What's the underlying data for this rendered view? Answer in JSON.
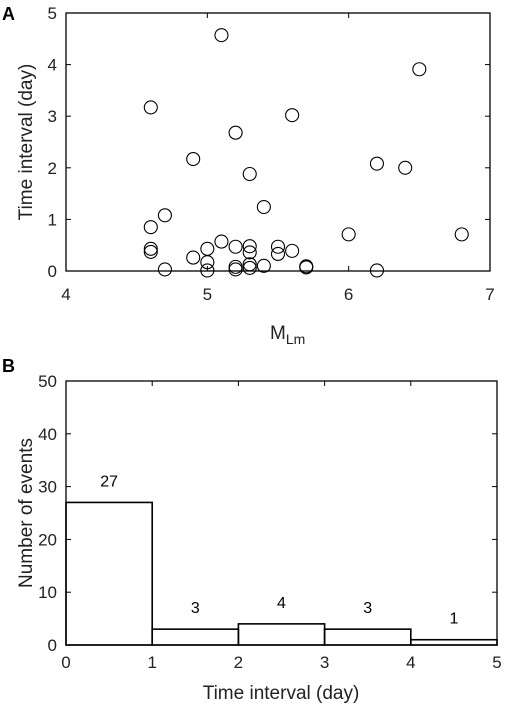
{
  "chart_data": [
    {
      "panel": "A",
      "type": "scatter",
      "xlabel_main": "M",
      "xlabel_sub": "Lm",
      "ylabel": "Time interval (day)",
      "xlim": [
        4,
        7
      ],
      "ylim": [
        0,
        5
      ],
      "xticks": [
        "4",
        "5",
        "6",
        "7"
      ],
      "yticks": [
        "0",
        "1",
        "2",
        "3",
        "4",
        "5"
      ],
      "points": [
        {
          "x": 4.6,
          "y": 3.17
        },
        {
          "x": 4.6,
          "y": 0.85
        },
        {
          "x": 4.6,
          "y": 0.43
        },
        {
          "x": 4.6,
          "y": 0.37
        },
        {
          "x": 4.7,
          "y": 1.08
        },
        {
          "x": 4.7,
          "y": 0.03
        },
        {
          "x": 4.9,
          "y": 2.17
        },
        {
          "x": 4.9,
          "y": 0.26
        },
        {
          "x": 5.0,
          "y": 0.43
        },
        {
          "x": 5.0,
          "y": 0.17
        },
        {
          "x": 5.0,
          "y": 0.01
        },
        {
          "x": 5.1,
          "y": 4.57
        },
        {
          "x": 5.1,
          "y": 0.57
        },
        {
          "x": 5.2,
          "y": 2.68
        },
        {
          "x": 5.2,
          "y": 0.47
        },
        {
          "x": 5.2,
          "y": 0.08
        },
        {
          "x": 5.2,
          "y": 0.03
        },
        {
          "x": 5.3,
          "y": 1.88
        },
        {
          "x": 5.3,
          "y": 0.48
        },
        {
          "x": 5.3,
          "y": 0.36
        },
        {
          "x": 5.3,
          "y": 0.13
        },
        {
          "x": 5.3,
          "y": 0.06
        },
        {
          "x": 5.4,
          "y": 1.24
        },
        {
          "x": 5.4,
          "y": 0.1
        },
        {
          "x": 5.5,
          "y": 0.47
        },
        {
          "x": 5.5,
          "y": 0.33
        },
        {
          "x": 5.6,
          "y": 3.02
        },
        {
          "x": 5.6,
          "y": 0.39
        },
        {
          "x": 5.7,
          "y": 0.09
        },
        {
          "x": 5.7,
          "y": 0.07
        },
        {
          "x": 6.0,
          "y": 0.71
        },
        {
          "x": 6.2,
          "y": 2.08
        },
        {
          "x": 6.2,
          "y": 0.01
        },
        {
          "x": 6.4,
          "y": 2.0
        },
        {
          "x": 6.5,
          "y": 3.91
        },
        {
          "x": 6.8,
          "y": 0.71
        }
      ]
    },
    {
      "panel": "B",
      "type": "bar",
      "xlabel": "Time interval (day)",
      "ylabel": "Number of events",
      "xlim": [
        0,
        5
      ],
      "ylim": [
        0,
        50
      ],
      "xticks": [
        "0",
        "1",
        "2",
        "3",
        "4",
        "5"
      ],
      "yticks": [
        "0",
        "10",
        "20",
        "30",
        "40",
        "50"
      ],
      "bins": [
        {
          "from": 0,
          "to": 1,
          "value": 27,
          "label": "27"
        },
        {
          "from": 1,
          "to": 2,
          "value": 3,
          "label": "3"
        },
        {
          "from": 2,
          "to": 3,
          "value": 4,
          "label": "4"
        },
        {
          "from": 3,
          "to": 4,
          "value": 3,
          "label": "3"
        },
        {
          "from": 4,
          "to": 5,
          "value": 1,
          "label": "1"
        }
      ]
    }
  ]
}
